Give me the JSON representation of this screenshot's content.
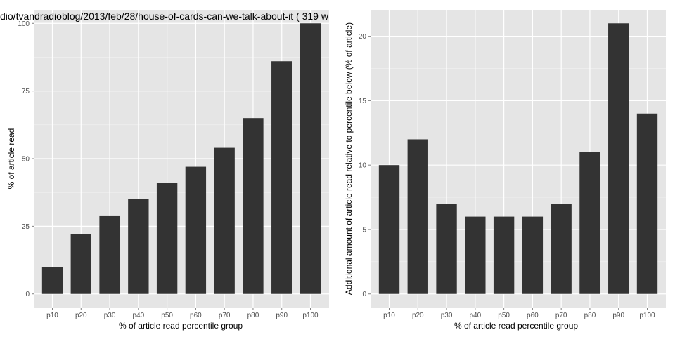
{
  "chart_data": [
    {
      "type": "bar",
      "title": "dio/tvandradioblog/2013/feb/28/house-of-cards-can-we-talk-about-it ( 319 w",
      "xlabel": "% of article read percentile group",
      "ylabel": "% of article read",
      "categories": [
        "p10",
        "p20",
        "p30",
        "p40",
        "p50",
        "p60",
        "p70",
        "p80",
        "p90",
        "p100"
      ],
      "values": [
        10,
        22,
        29,
        35,
        41,
        47,
        54,
        65,
        86,
        100
      ],
      "yticks": [
        0,
        25,
        50,
        75,
        100
      ],
      "ylim": [
        -5,
        105
      ],
      "grid": true,
      "bar_color": "#333333",
      "panel_color": "#e5e5e5",
      "grid_color": "#ffffff"
    },
    {
      "type": "bar",
      "title": "",
      "xlabel": "% of article read percentile group",
      "ylabel": "Additional amount of article read relative to percentile below (% of article)",
      "categories": [
        "p10",
        "p20",
        "p30",
        "p40",
        "p50",
        "p60",
        "p70",
        "p80",
        "p90",
        "p100"
      ],
      "values": [
        10,
        12,
        7,
        6,
        6,
        6,
        7,
        11,
        21,
        14
      ],
      "yticks": [
        0,
        5,
        10,
        15,
        20
      ],
      "ylim": [
        -1.05,
        22.05
      ],
      "grid": true,
      "bar_color": "#333333",
      "panel_color": "#e5e5e5",
      "grid_color": "#ffffff"
    }
  ]
}
